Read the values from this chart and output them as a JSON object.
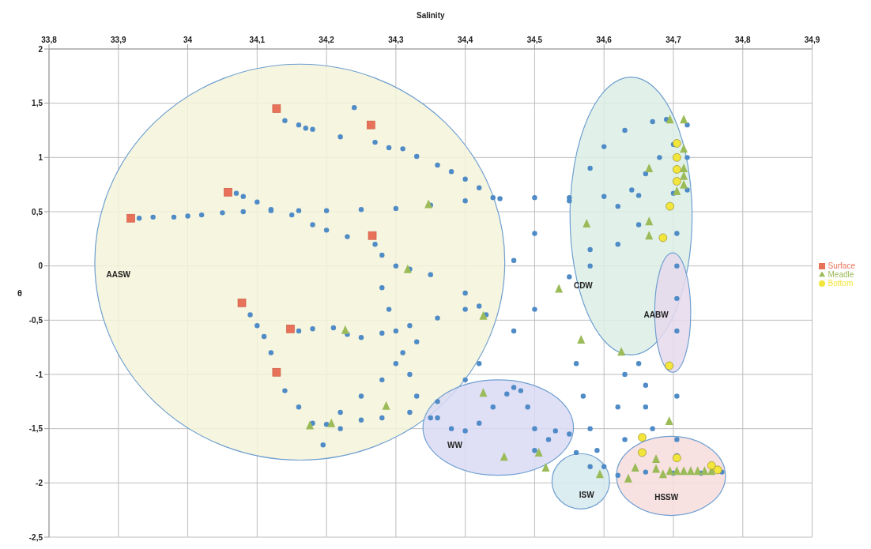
{
  "chart_data": {
    "type": "scatter",
    "xlabel": "Salinity",
    "ylabel": "θ",
    "xlim": [
      33.8,
      34.9
    ],
    "xticks": [
      {
        "value": 33.8,
        "label": "33,8"
      },
      {
        "value": 33.9,
        "label": "33,9"
      },
      34,
      {
        "value": 34.1,
        "label": "34,1"
      },
      {
        "value": 34.2,
        "label": "34,2"
      },
      {
        "value": 34.3,
        "label": "34,3"
      },
      {
        "value": 34.4,
        "label": "34,4"
      },
      {
        "value": 34.5,
        "label": "34,5"
      },
      {
        "value": 34.6,
        "label": "34,6"
      },
      {
        "value": 34.7,
        "label": "34,7"
      },
      {
        "value": 34.8,
        "label": "34,8"
      },
      {
        "value": 34.9,
        "label": "34,9"
      }
    ],
    "ylim": [
      -2.5,
      2
    ],
    "yticks": [
      {
        "value": -2.5,
        "label": "-2,5"
      },
      -2,
      {
        "value": -1.5,
        "label": "-1,5"
      },
      -1,
      {
        "value": -0.5,
        "label": "-0,5"
      },
      0,
      {
        "value": 0.5,
        "label": "0,5"
      },
      1,
      {
        "value": 1.5,
        "label": "1,5"
      },
      2
    ],
    "grid": true,
    "legend": "right",
    "annotations": [
      "AASW",
      "CDW",
      "AABW",
      "WW",
      "ISW",
      "HSSW"
    ],
    "series": [
      {
        "color": "#4f8bc6",
        "marker": "circle",
        "x": [
          33.93,
          33.95,
          33.98,
          34.0,
          34.02,
          34.05,
          34.08,
          34.12,
          34.16,
          34.2,
          34.25,
          34.3,
          34.35,
          34.4,
          34.45,
          34.5,
          34.55,
          34.6,
          34.65,
          34.7,
          34.07,
          34.08,
          34.1,
          34.12,
          34.15,
          34.18,
          34.2,
          34.23,
          34.14,
          34.16,
          34.17,
          34.18,
          34.22,
          34.24,
          34.27,
          34.29,
          34.31,
          34.33,
          34.36,
          34.38,
          34.4,
          34.42,
          34.44,
          34.27,
          34.28,
          34.3,
          34.32,
          34.35,
          34.4,
          34.42,
          34.43,
          34.28,
          34.29,
          34.3,
          34.31,
          34.32,
          34.33,
          34.35,
          34.09,
          34.1,
          34.11,
          34.12,
          34.13,
          34.14,
          34.16,
          34.18,
          34.2,
          34.195,
          34.22,
          34.25,
          34.28,
          34.32,
          34.36,
          34.4,
          34.42,
          34.16,
          34.18,
          34.21,
          34.23,
          34.25,
          34.28,
          34.32,
          34.36,
          34.4,
          34.22,
          34.25,
          34.28,
          34.3,
          34.33,
          34.47,
          34.5,
          34.55,
          34.58,
          34.62,
          34.64,
          34.66,
          34.68,
          34.7,
          34.47,
          34.5,
          34.55,
          34.58,
          34.6,
          34.63,
          34.67,
          34.69,
          34.58,
          34.62,
          34.65,
          34.705,
          34.705,
          34.705,
          34.705,
          34.705,
          34.705,
          34.705,
          34.72,
          34.72,
          34.72,
          34.56,
          34.57,
          34.58,
          34.59,
          34.6,
          34.63,
          34.62,
          34.63,
          34.65,
          34.66,
          34.66,
          34.67,
          34.36,
          34.38,
          34.4,
          34.42,
          34.44,
          34.46,
          34.47,
          34.48,
          34.49,
          34.5,
          34.5,
          34.52,
          34.53,
          34.55,
          34.56,
          34.58,
          34.62,
          34.66,
          34.7,
          34.74,
          34.77
        ],
        "values": [
          0.44,
          0.45,
          0.45,
          0.46,
          0.47,
          0.49,
          0.5,
          0.51,
          0.51,
          0.51,
          0.52,
          0.53,
          0.56,
          0.6,
          0.62,
          0.63,
          0.63,
          0.64,
          0.65,
          0.67,
          0.67,
          0.64,
          0.59,
          0.52,
          0.47,
          0.38,
          0.33,
          0.27,
          1.34,
          1.3,
          1.27,
          1.26,
          1.19,
          1.46,
          1.14,
          1.09,
          1.08,
          1.01,
          0.93,
          0.87,
          0.8,
          0.72,
          0.63,
          0.2,
          0.1,
          0.0,
          -0.03,
          -0.08,
          -0.25,
          -0.37,
          -0.45,
          -0.2,
          -0.4,
          -0.6,
          -0.8,
          -1.0,
          -1.2,
          -1.4,
          -0.45,
          -0.55,
          -0.65,
          -0.8,
          null,
          -1.15,
          -1.3,
          -1.45,
          -1.46,
          -1.65,
          -1.5,
          -1.42,
          -1.4,
          -1.35,
          -1.25,
          -1.05,
          -0.9,
          -0.6,
          -0.58,
          -0.57,
          -0.63,
          -0.66,
          -0.62,
          -0.55,
          -0.48,
          -0.4,
          -1.35,
          -1.2,
          -1.05,
          -0.9,
          -0.7,
          -0.6,
          -0.4,
          -0.1,
          0.15,
          0.55,
          0.7,
          0.85,
          1.0,
          1.12,
          0.05,
          0.3,
          0.6,
          0.9,
          1.1,
          1.25,
          1.33,
          1.35,
          0.0,
          0.2,
          0.38,
          0.3,
          0.0,
          -0.3,
          -0.6,
          -1.2,
          -1.6,
          -1.75,
          1.3,
          1.0,
          0.7,
          -0.9,
          -1.2,
          -1.5,
          -1.7,
          -1.85,
          -1.0,
          -1.3,
          -1.6,
          -0.9,
          -1.1,
          -1.3,
          -1.5,
          -1.4,
          -1.5,
          -1.52,
          -1.45,
          -1.3,
          -1.18,
          -1.12,
          -1.15,
          -1.3,
          -1.5,
          -1.7,
          -1.6,
          -1.52,
          -1.55,
          -1.72,
          -1.85,
          -1.93,
          -1.9,
          -1.91,
          -1.91,
          -1.9
        ]
      },
      {
        "name": "Surface",
        "color": "#e8715a",
        "marker": "square",
        "x": [
          33.918,
          34.058,
          34.128,
          34.264,
          34.266,
          34.078,
          34.148,
          34.128
        ],
        "values": [
          0.44,
          0.68,
          1.45,
          1.3,
          0.28,
          -0.34,
          -0.58,
          -0.98
        ]
      },
      {
        "name": "Meadle",
        "color": "#9bbb59",
        "marker": "triangle",
        "x": [
          34.317,
          34.695,
          34.715,
          34.715,
          34.665,
          34.715,
          34.715,
          34.715,
          34.705,
          34.347,
          34.575,
          34.665,
          34.665,
          34.535,
          34.227,
          34.176,
          34.207,
          34.286,
          34.426,
          34.567,
          34.625,
          34.426,
          34.694,
          34.456,
          34.506,
          34.516,
          34.594,
          34.645,
          34.635,
          34.675,
          34.675,
          34.685,
          34.695,
          34.705,
          34.715,
          34.725,
          34.735,
          34.745,
          34.755
        ],
        "values": [
          -0.03,
          1.35,
          1.35,
          1.08,
          0.9,
          0.9,
          0.83,
          0.75,
          0.69,
          0.57,
          0.39,
          0.41,
          0.28,
          -0.21,
          -0.59,
          -1.47,
          -1.45,
          -1.29,
          -0.46,
          -0.68,
          -0.79,
          -1.17,
          -1.43,
          -1.76,
          -1.72,
          -1.86,
          -1.92,
          -1.86,
          -1.96,
          -1.78,
          -1.87,
          -1.92,
          -1.89,
          -1.89,
          -1.89,
          -1.89,
          -1.89,
          -1.89,
          -1.89
        ]
      },
      {
        "name": "Bottom",
        "color": "#f2e53c",
        "marker": "circle",
        "x": [
          34.705,
          34.705,
          34.705,
          34.705,
          34.695,
          34.685,
          34.694,
          34.655,
          34.655,
          34.705,
          34.755,
          34.764
        ],
        "values": [
          1.13,
          1.0,
          0.89,
          0.78,
          0.55,
          0.26,
          -0.92,
          -1.58,
          -1.72,
          -1.77,
          -1.84,
          -1.88
        ]
      }
    ]
  }
}
